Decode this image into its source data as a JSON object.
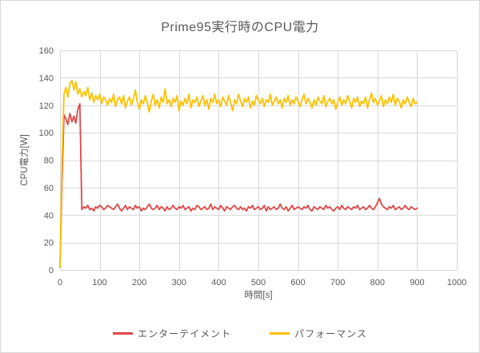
{
  "theme": {
    "background": "#FFFFFF",
    "border": "#D9D9D9",
    "grid": "#D9D9D9",
    "text": "#595959"
  },
  "chart_data": {
    "type": "line",
    "title": "Prime95実行時のCPU電力",
    "xlabel": "時間[s]",
    "ylabel": "CPU電力[W]",
    "xlim": [
      0,
      1000
    ],
    "ylim": [
      0,
      160
    ],
    "xticks": [
      0,
      100,
      200,
      300,
      400,
      500,
      600,
      700,
      800,
      900,
      1000
    ],
    "yticks": [
      0,
      20,
      40,
      60,
      80,
      100,
      120,
      140,
      160
    ],
    "grid": true,
    "legend_position": "bottom",
    "x_start": 0,
    "x_step": 5,
    "series": [
      {
        "name": "エンターテイメント",
        "color": "#E04646",
        "values": [
          2,
          65,
          113,
          110,
          106,
          114,
          108,
          112,
          107,
          117,
          121,
          44,
          46,
          45,
          47,
          44,
          45,
          43,
          46,
          45,
          47,
          46,
          44,
          45,
          47,
          46,
          45,
          44,
          46,
          48,
          45,
          43,
          45,
          47,
          44,
          46,
          45,
          44,
          47,
          45,
          46,
          43,
          45,
          44,
          46,
          48,
          45,
          44,
          45,
          47,
          44,
          46,
          45,
          43,
          46,
          44,
          45,
          47,
          45,
          44,
          46,
          45,
          47,
          44,
          45,
          46,
          43,
          45,
          44,
          47,
          46,
          44,
          45,
          46,
          44,
          45,
          48,
          44,
          46,
          45,
          44,
          47,
          45,
          43,
          46,
          45,
          44,
          46,
          47,
          45,
          44,
          46,
          44,
          45,
          43,
          46,
          45,
          47,
          44,
          45,
          46,
          44,
          45,
          47,
          43,
          46,
          44,
          45,
          46,
          44,
          45,
          48,
          45,
          44,
          46,
          43,
          45,
          47,
          44,
          45,
          46,
          45,
          44,
          46,
          45,
          47,
          44,
          43,
          46,
          45,
          44,
          46,
          45,
          44,
          47,
          45,
          46,
          44,
          43,
          45,
          46,
          44,
          47,
          45,
          44,
          46,
          45,
          44,
          46,
          45,
          47,
          44,
          45,
          46,
          44,
          45,
          47,
          45,
          44,
          46,
          49,
          52,
          48,
          46,
          45,
          44,
          46,
          45,
          47,
          44,
          45,
          46,
          44,
          45,
          47,
          45,
          44,
          46,
          45,
          44,
          45
        ]
      },
      {
        "name": "パフォーマンス",
        "color": "#FFC000",
        "values": [
          2,
          80,
          128,
          133,
          126,
          136,
          138,
          131,
          137,
          128,
          132,
          126,
          130,
          127,
          133,
          124,
          129,
          122,
          127,
          124,
          128,
          121,
          126,
          124,
          120,
          125,
          122,
          128,
          119,
          124,
          126,
          121,
          127,
          118,
          123,
          126,
          120,
          125,
          131,
          122,
          117,
          124,
          121,
          127,
          122,
          115,
          123,
          128,
          120,
          124,
          118,
          126,
          122,
          132,
          121,
          124,
          119,
          125,
          122,
          127,
          116,
          123,
          120,
          125,
          121,
          128,
          118,
          124,
          122,
          126,
          119,
          123,
          127,
          120,
          124,
          117,
          125,
          122,
          128,
          121,
          124,
          119,
          126,
          123,
          120,
          127,
          122,
          116,
          124,
          121,
          128,
          123,
          119,
          125,
          122,
          126,
          118,
          123,
          120,
          127,
          124,
          121,
          125,
          119,
          124,
          122,
          128,
          120,
          123,
          126,
          121,
          124,
          118,
          125,
          122,
          127,
          120,
          124,
          121,
          126,
          123,
          119,
          124,
          128,
          121,
          125,
          122,
          118,
          124,
          120,
          126,
          123,
          121,
          127,
          119,
          123,
          125,
          121,
          124,
          117,
          122,
          126,
          120,
          124,
          121,
          127,
          123,
          118,
          125,
          122,
          126,
          119,
          123,
          121,
          126,
          118,
          124,
          129,
          122,
          125,
          120,
          123,
          127,
          119,
          124,
          121,
          126,
          122,
          128,
          120,
          125,
          123,
          118,
          124,
          121,
          126,
          122,
          119,
          125,
          121,
          122
        ]
      }
    ]
  }
}
